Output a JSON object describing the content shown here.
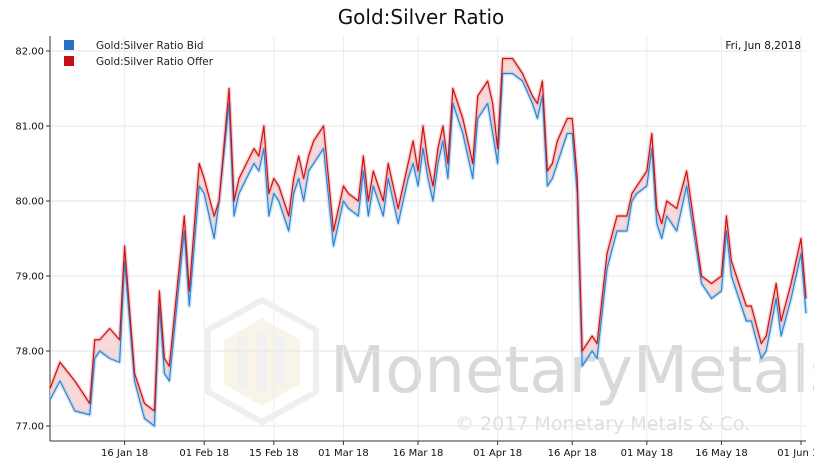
{
  "chart_data": {
    "type": "line",
    "title": "Gold:Silver Ratio",
    "date_label": "Fri, Jun 8,2018",
    "ylim": [
      76.8,
      82.2
    ],
    "yticks": [
      "77.00",
      "78.00",
      "79.00",
      "80.00",
      "81.00",
      "82.00"
    ],
    "ytick_values": [
      77,
      78,
      79,
      80,
      81,
      82
    ],
    "xlim": [
      0,
      152
    ],
    "xticks": [
      "16 Jan 18",
      "01 Feb 18",
      "15 Feb 18",
      "01 Mar 18",
      "16 Mar 18",
      "01 Apr 18",
      "16 Apr 18",
      "01 May 18",
      "16 May 18",
      "01 Jun 18"
    ],
    "xtick_values": [
      15,
      31,
      45,
      59,
      74,
      90,
      105,
      120,
      135,
      151
    ],
    "grid": true,
    "legend_position": "top-left",
    "series": [
      {
        "name": "Gold:Silver Ratio Bid",
        "color": "#2b84d6",
        "x": [
          0,
          2,
          5,
          8,
          9,
          10,
          12,
          14,
          15,
          17,
          19,
          21,
          22,
          23,
          24,
          27,
          28,
          30,
          31,
          33,
          34,
          36,
          37,
          38,
          41,
          42,
          43,
          44,
          45,
          46,
          48,
          49,
          50,
          51,
          52,
          53,
          55,
          57,
          58,
          59,
          60,
          62,
          63,
          64,
          65,
          67,
          68,
          70,
          71,
          72,
          73,
          74,
          75,
          76,
          77,
          78,
          79,
          80,
          81,
          82,
          83,
          85,
          86,
          88,
          89,
          90,
          91,
          93,
          95,
          97,
          98,
          99,
          100,
          101,
          102,
          104,
          105,
          106,
          107,
          109,
          110,
          112,
          114,
          116,
          117,
          118,
          120,
          121,
          122,
          123,
          124,
          126,
          128,
          131,
          133,
          135,
          136,
          137,
          139,
          140,
          141,
          143,
          144,
          146,
          147,
          149,
          151,
          152
        ],
        "y": [
          77.35,
          77.6,
          77.2,
          77.15,
          77.9,
          78.0,
          77.9,
          77.85,
          79.2,
          77.6,
          77.1,
          77.0,
          78.6,
          77.7,
          77.6,
          79.6,
          78.6,
          80.2,
          80.1,
          79.5,
          80.0,
          81.3,
          79.8,
          80.1,
          80.5,
          80.4,
          80.7,
          79.8,
          80.1,
          80.0,
          79.6,
          80.1,
          80.3,
          80.0,
          80.4,
          80.5,
          80.7,
          79.4,
          79.7,
          80.0,
          79.9,
          79.8,
          80.4,
          79.8,
          80.2,
          79.8,
          80.3,
          79.7,
          80.0,
          80.3,
          80.5,
          80.2,
          80.7,
          80.3,
          80.0,
          80.5,
          80.8,
          80.3,
          81.3,
          81.1,
          80.9,
          80.3,
          81.1,
          81.3,
          80.9,
          80.5,
          81.7,
          81.7,
          81.6,
          81.3,
          81.1,
          81.4,
          80.2,
          80.3,
          80.5,
          80.9,
          80.9,
          80.1,
          77.8,
          78.0,
          77.9,
          79.1,
          79.6,
          79.6,
          80.0,
          80.1,
          80.2,
          80.7,
          79.7,
          79.5,
          79.8,
          79.6,
          80.2,
          78.9,
          78.7,
          78.8,
          79.6,
          79.0,
          78.6,
          78.4,
          78.4,
          77.9,
          78.0,
          78.7,
          78.2,
          78.7,
          79.3,
          78.5
        ]
      },
      {
        "name": "Gold:Silver Ratio Offer",
        "color": "#cc1111",
        "x": [
          0,
          2,
          5,
          8,
          9,
          10,
          12,
          14,
          15,
          17,
          19,
          21,
          22,
          23,
          24,
          27,
          28,
          30,
          31,
          33,
          34,
          36,
          37,
          38,
          41,
          42,
          43,
          44,
          45,
          46,
          48,
          49,
          50,
          51,
          52,
          53,
          55,
          57,
          58,
          59,
          60,
          62,
          63,
          64,
          65,
          67,
          68,
          70,
          71,
          72,
          73,
          74,
          75,
          76,
          77,
          78,
          79,
          80,
          81,
          82,
          83,
          85,
          86,
          88,
          89,
          90,
          91,
          93,
          95,
          97,
          98,
          99,
          100,
          101,
          102,
          104,
          105,
          106,
          107,
          109,
          110,
          112,
          114,
          116,
          117,
          118,
          120,
          121,
          122,
          123,
          124,
          126,
          128,
          131,
          133,
          135,
          136,
          137,
          139,
          140,
          141,
          143,
          144,
          146,
          147,
          149,
          151,
          152
        ],
        "y": [
          77.5,
          77.85,
          77.6,
          77.3,
          78.15,
          78.15,
          78.3,
          78.15,
          79.4,
          77.7,
          77.3,
          77.2,
          78.8,
          77.9,
          77.8,
          79.8,
          78.8,
          80.5,
          80.3,
          79.8,
          80.0,
          81.5,
          80.0,
          80.3,
          80.7,
          80.6,
          81.0,
          80.1,
          80.3,
          80.2,
          79.8,
          80.3,
          80.6,
          80.3,
          80.6,
          80.8,
          81.0,
          79.6,
          79.9,
          80.2,
          80.1,
          80.0,
          80.6,
          80.0,
          80.4,
          80.0,
          80.5,
          79.9,
          80.2,
          80.5,
          80.8,
          80.4,
          81.0,
          80.5,
          80.2,
          80.7,
          81.0,
          80.5,
          81.5,
          81.3,
          81.1,
          80.5,
          81.4,
          81.6,
          81.3,
          80.7,
          81.9,
          81.9,
          81.7,
          81.4,
          81.3,
          81.6,
          80.4,
          80.5,
          80.8,
          81.1,
          81.1,
          80.3,
          78.0,
          78.2,
          78.1,
          79.3,
          79.8,
          79.8,
          80.1,
          80.2,
          80.4,
          80.9,
          79.9,
          79.7,
          80.0,
          79.9,
          80.4,
          79.0,
          78.9,
          79.0,
          79.8,
          79.2,
          78.8,
          78.6,
          78.6,
          78.1,
          78.2,
          78.9,
          78.4,
          78.9,
          79.5,
          78.7
        ]
      }
    ],
    "watermark": {
      "brand": "MonetaryMetals",
      "copyright": "© 2017 Monetary Metals & Co."
    }
  }
}
